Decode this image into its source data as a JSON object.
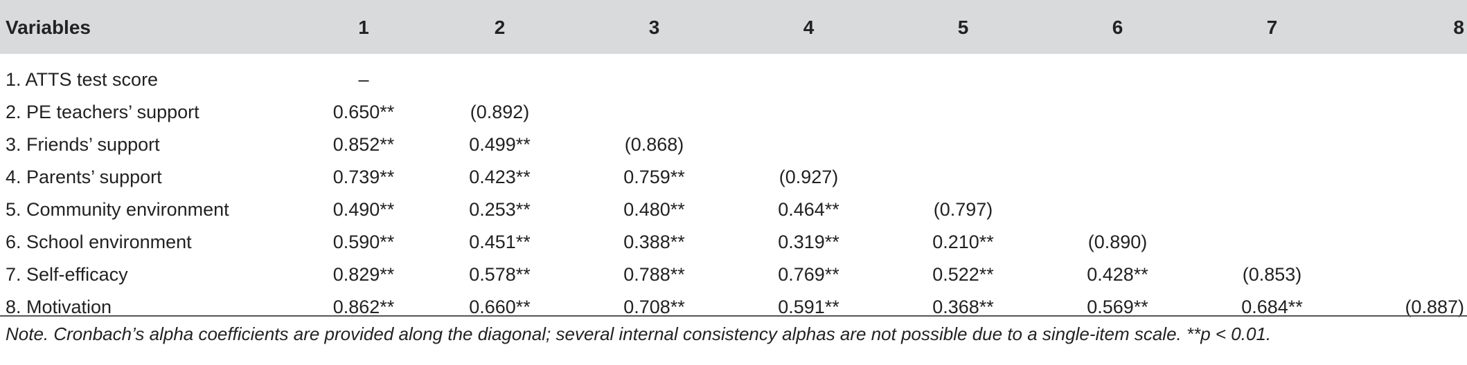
{
  "table": {
    "headers": [
      "Variables",
      "1",
      "2",
      "3",
      "4",
      "5",
      "6",
      "7",
      "8"
    ],
    "rows": [
      {
        "label": "1. ATTS test score",
        "cells": [
          "–",
          "",
          "",
          "",
          "",
          "",
          "",
          ""
        ]
      },
      {
        "label": "2. PE teachers’ support",
        "cells": [
          "0.650**",
          "(0.892)",
          "",
          "",
          "",
          "",
          "",
          ""
        ]
      },
      {
        "label": "3. Friends’ support",
        "cells": [
          "0.852**",
          "0.499**",
          "(0.868)",
          "",
          "",
          "",
          "",
          ""
        ]
      },
      {
        "label": "4. Parents’ support",
        "cells": [
          "0.739**",
          "0.423**",
          "0.759**",
          "(0.927)",
          "",
          "",
          "",
          ""
        ]
      },
      {
        "label": "5. Community environment",
        "cells": [
          "0.490**",
          "0.253**",
          "0.480**",
          "0.464**",
          "(0.797)",
          "",
          "",
          ""
        ]
      },
      {
        "label": "6. School environment",
        "cells": [
          "0.590**",
          "0.451**",
          "0.388**",
          "0.319**",
          "0.210**",
          "(0.890)",
          "",
          ""
        ]
      },
      {
        "label": "7. Self-efficacy",
        "cells": [
          "0.829**",
          "0.578**",
          "0.788**",
          "0.769**",
          "0.522**",
          "0.428**",
          "(0.853)",
          ""
        ]
      },
      {
        "label": "8. Motivation",
        "cells": [
          "0.862**",
          "0.660**",
          "0.708**",
          "0.591**",
          "0.368**",
          "0.569**",
          "0.684**",
          "(0.887)"
        ]
      }
    ],
    "note": "Note. Cronbach’s alpha coefficients are provided along the diagonal; several internal consistency alphas are not possible due to a single-item scale. **p < 0.01."
  }
}
